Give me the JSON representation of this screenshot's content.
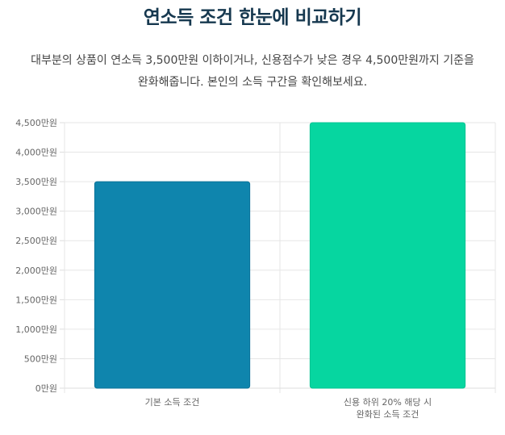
{
  "page": {
    "title": "연소득 조건 한눈에 비교하기",
    "description_line1": "대부분의 상품이 연소득 3,500만원 이하이거나, 신용점수가 낮은 경우 4,500만원까지 기준을",
    "description_line2": "완화해줍니다. 본인의 소득 구간을 확인해보세요."
  },
  "chart_data": {
    "type": "bar",
    "categories": [
      [
        "기본 소득 조건"
      ],
      [
        "신용 하위 20% 해당 시",
        "완화된 소득 조건"
      ]
    ],
    "values": [
      3500,
      4500
    ],
    "bar_colors": [
      "#0f85ad",
      "#06d6a0"
    ],
    "bar_borders": [
      "#0c7399",
      "#05c493"
    ],
    "ylim": [
      0,
      4500
    ],
    "yticks": [
      {
        "value": 0,
        "label": "0만원"
      },
      {
        "value": 500,
        "label": "500만원"
      },
      {
        "value": 1000,
        "label": "1,000만원"
      },
      {
        "value": 1500,
        "label": "1,500만원"
      },
      {
        "value": 2000,
        "label": "2,000만원"
      },
      {
        "value": 2500,
        "label": "2,500만원"
      },
      {
        "value": 3000,
        "label": "3,000만원"
      },
      {
        "value": 3500,
        "label": "3,500만원"
      },
      {
        "value": 4000,
        "label": "4,000만원"
      },
      {
        "value": 4500,
        "label": "4,500만원"
      }
    ],
    "grid": true,
    "legend": "none"
  }
}
